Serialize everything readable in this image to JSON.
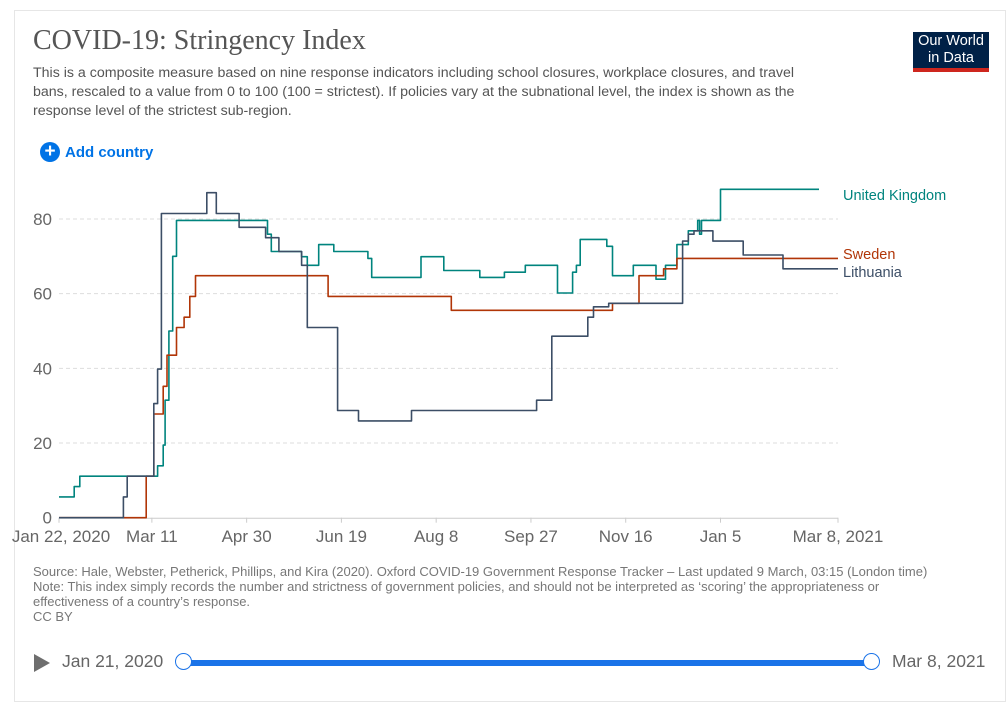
{
  "header": {
    "title": "COVID-19: Stringency Index",
    "subtitle": "This is a composite measure based on nine response indicators including school closures, workplace closures, and travel bans, rescaled to a value from 0 to 100 (100 = strictest). If policies vary at the subnational level, the index is shown as the response level of the strictest sub-region.",
    "logo_text": "Our World in Data",
    "add_country_label": "Add country",
    "add_country_icon": "plus-circle-icon"
  },
  "footer": {
    "source": "Source: Hale, Webster, Petherick, Phillips, and Kira (2020). Oxford COVID-19 Government Response Tracker – Last updated 9 March, 03:15 (London time)",
    "note": "Note: This index simply records the number and strictness of government policies, and should not be interpreted as ‘scoring’ the appropriateness or effectiveness of a country’s response.",
    "license": "CC BY"
  },
  "timeline": {
    "start_label": "Jan 21, 2020",
    "end_label": "Mar 8, 2021",
    "play_icon": "play-icon",
    "accent": "#1a73e8"
  },
  "chart_data": {
    "type": "line",
    "step": true,
    "title": "COVID-19: Stringency Index",
    "xlim": [
      "2020-01-22",
      "2021-03-08"
    ],
    "ylim": [
      0,
      100
    ],
    "x_ticks": [
      "2020-01-22",
      "2020-03-11",
      "2020-04-30",
      "2020-06-19",
      "2020-08-08",
      "2020-09-27",
      "2020-11-16",
      "2021-01-05",
      "2021-03-08"
    ],
    "x_tick_labels": [
      "Jan 22, 2020",
      "Mar 11",
      "Apr 30",
      "Jun 19",
      "Aug 8",
      "Sep 27",
      "Nov 16",
      "Jan 5",
      "Mar 8, 2021"
    ],
    "y_ticks": [
      0,
      20,
      40,
      60,
      80
    ],
    "y_tick_labels": [
      "0",
      "20",
      "40",
      "60",
      "80"
    ],
    "grid": "horizontal dashed",
    "legend": "right, inline labels",
    "series": [
      {
        "name": "United Kingdom",
        "color": "#00847e",
        "points": [
          [
            "2020-01-22",
            5.56
          ],
          [
            "2020-01-30",
            8.33
          ],
          [
            "2020-02-02",
            11.11
          ],
          [
            "2020-03-14",
            13.89
          ],
          [
            "2020-03-17",
            19.44
          ],
          [
            "2020-03-18",
            31.48
          ],
          [
            "2020-03-20",
            50
          ],
          [
            "2020-03-22",
            70
          ],
          [
            "2020-03-24",
            79.63
          ],
          [
            "2020-05-11",
            75.93
          ],
          [
            "2020-05-13",
            71.3
          ],
          [
            "2020-05-29",
            69.91
          ],
          [
            "2020-06-01",
            67.59
          ],
          [
            "2020-06-07",
            73.15
          ],
          [
            "2020-06-15",
            71.3
          ],
          [
            "2020-07-03",
            69.44
          ],
          [
            "2020-07-05",
            64.35
          ],
          [
            "2020-07-31",
            69.91
          ],
          [
            "2020-08-12",
            66.2
          ],
          [
            "2020-08-31",
            64.35
          ],
          [
            "2020-09-13",
            65.74
          ],
          [
            "2020-09-24",
            67.59
          ],
          [
            "2020-10-11",
            60.19
          ],
          [
            "2020-10-19",
            65.74
          ],
          [
            "2020-10-21",
            67.59
          ],
          [
            "2020-10-23",
            74.54
          ],
          [
            "2020-11-06",
            72.69
          ],
          [
            "2020-11-09",
            64.81
          ],
          [
            "2020-11-20",
            67.59
          ],
          [
            "2020-12-02",
            63.89
          ],
          [
            "2020-12-07",
            67.59
          ],
          [
            "2020-12-13",
            73.15
          ],
          [
            "2020-12-19",
            76.85
          ],
          [
            "2020-12-24",
            79.63
          ],
          [
            "2020-12-25",
            75.93
          ],
          [
            "2020-12-26",
            79.63
          ],
          [
            "2021-01-05",
            87.96
          ],
          [
            "2021-02-26",
            87.96
          ]
        ]
      },
      {
        "name": "Sweden",
        "color": "#b13507",
        "points": [
          [
            "2020-01-22",
            0
          ],
          [
            "2020-03-08",
            11.11
          ],
          [
            "2020-03-12",
            27.78
          ],
          [
            "2020-03-17",
            35.19
          ],
          [
            "2020-03-19",
            43.52
          ],
          [
            "2020-03-24",
            50.93
          ],
          [
            "2020-03-28",
            53.7
          ],
          [
            "2020-03-31",
            59.26
          ],
          [
            "2020-04-03",
            64.81
          ],
          [
            "2020-06-12",
            59.26
          ],
          [
            "2020-08-16",
            55.56
          ],
          [
            "2020-11-09",
            57.41
          ],
          [
            "2020-11-23",
            64.81
          ],
          [
            "2020-12-06",
            66.67
          ],
          [
            "2020-12-13",
            69.44
          ],
          [
            "2021-03-08",
            69.44
          ]
        ]
      },
      {
        "name": "Lithuania",
        "color": "#3c4e66",
        "points": [
          [
            "2020-01-22",
            0
          ],
          [
            "2020-02-25",
            5.56
          ],
          [
            "2020-02-27",
            11.11
          ],
          [
            "2020-03-12",
            30.56
          ],
          [
            "2020-03-14",
            39.81
          ],
          [
            "2020-03-16",
            81.48
          ],
          [
            "2020-04-09",
            87.04
          ],
          [
            "2020-04-14",
            81.48
          ],
          [
            "2020-04-26",
            77.78
          ],
          [
            "2020-05-10",
            75
          ],
          [
            "2020-05-17",
            71.3
          ],
          [
            "2020-05-29",
            67.59
          ],
          [
            "2020-06-01",
            50.93
          ],
          [
            "2020-06-17",
            28.7
          ],
          [
            "2020-06-28",
            25.93
          ],
          [
            "2020-07-26",
            28.7
          ],
          [
            "2020-09-30",
            31.48
          ],
          [
            "2020-10-08",
            48.61
          ],
          [
            "2020-10-27",
            53.7
          ],
          [
            "2020-10-30",
            56.48
          ],
          [
            "2020-11-07",
            57.41
          ],
          [
            "2020-12-16",
            74.07
          ],
          [
            "2020-12-19",
            75.93
          ],
          [
            "2020-12-22",
            76.85
          ],
          [
            "2021-01-01",
            74.07
          ],
          [
            "2021-01-17",
            70.37
          ],
          [
            "2021-02-07",
            66.67
          ],
          [
            "2021-03-08",
            66.67
          ]
        ]
      }
    ]
  }
}
